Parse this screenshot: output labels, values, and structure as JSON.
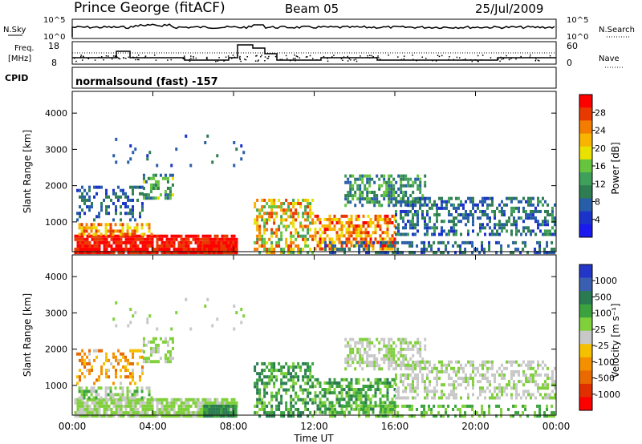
{
  "header": {
    "station": "Prince George (fitACF)",
    "beam": "Beam 05",
    "date": "25/Jul/2009"
  },
  "top_panels": {
    "nsky_label": "N.Sky",
    "nsky_ticks": [
      "10^5",
      "10^0"
    ],
    "nsearch_label": "N.Search",
    "nsearch_ticks": [
      "10^5",
      "10^0"
    ],
    "freq_label_1": "Freq.",
    "freq_label_2": "[MHz]",
    "freq_ticks": [
      "18",
      "8"
    ],
    "nave_label": "Nave",
    "nave_ticks": [
      "60",
      "0"
    ],
    "cpid_label": "CPID",
    "cpid_value": "normalsound (fast) -157"
  },
  "chart_data": [
    {
      "type": "heatmap",
      "name": "power",
      "ylabel": "Slant Range [km]",
      "ylim": [
        180,
        4600
      ],
      "yticks": [
        "1000",
        "2000",
        "3000",
        "4000"
      ],
      "xlim": [
        "00:00",
        "24:00"
      ],
      "colorbar": {
        "label": "Power [dB]",
        "ticks": [
          "28",
          "24",
          "20",
          "16",
          "12",
          "8",
          "4"
        ],
        "colors": [
          "#ff0000",
          "#e83a00",
          "#f47c00",
          "#f7b400",
          "#e9e100",
          "#66c43e",
          "#3f9f5b",
          "#2e7e52",
          "#285ea8",
          "#1b33c8",
          "#1a1aee"
        ]
      }
    },
    {
      "type": "heatmap",
      "name": "velocity",
      "ylabel": "Slant Range [km]",
      "ylim": [
        180,
        4600
      ],
      "yticks": [
        "1000",
        "2000",
        "3000",
        "4000"
      ],
      "xlim": [
        "00:00",
        "24:00"
      ],
      "colorbar": {
        "label": "Velocity [m s⁻¹]",
        "ticks": [
          "1000",
          "500",
          "100",
          "25",
          "-25",
          "-100",
          "-500",
          "-1000"
        ],
        "colors": [
          "#2436c8",
          "#3a5fb0",
          "#2a7a52",
          "#3ba23e",
          "#7fd03a",
          "#c8c8c8",
          "#f4c000",
          "#f49000",
          "#e86a00",
          "#e03000",
          "#ff0000"
        ]
      }
    }
  ],
  "x_axis": {
    "ticks": [
      "00:00",
      "04:00",
      "08:00",
      "12:00",
      "16:00",
      "20:00",
      "00:00"
    ],
    "label": "Time UT"
  }
}
